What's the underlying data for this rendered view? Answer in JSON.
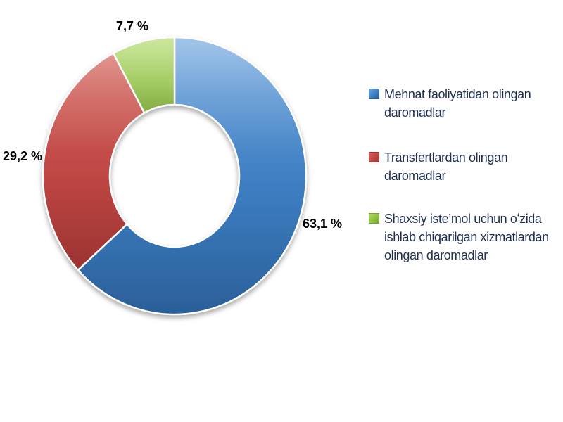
{
  "chart_data": {
    "type": "pie",
    "subtype": "doughnut",
    "title": "",
    "unit": "%",
    "decimal_separator": ",",
    "direction": "clockwise",
    "start_angle_deg": 0,
    "hole_ratio": 0.5,
    "legend_position": "right",
    "background_color": "#FFFFFF",
    "label_text_color": "#000000",
    "legend_text_color": "#1F3050",
    "slice_border_color": "#FFFFFF",
    "slices": [
      {
        "id": "mehnat-faoliyatidan",
        "name": "Mehnat faoliyatidan olingan daromadlar",
        "value": 63.1,
        "label": "63,1 %",
        "color": "#3C7DC1",
        "color_light": "#6AA2DC",
        "color_dark": "#2B5F98",
        "legend_lines": [
          "Mehnat faoliyatidan olingan",
          "daromadlar"
        ]
      },
      {
        "id": "transfertlardan",
        "name": "Transfertlardan olingan daromadlar",
        "value": 29.2,
        "label": "29,2 %",
        "color": "#C04744",
        "color_light": "#D4655D",
        "color_dark": "#9A3331",
        "legend_lines": [
          "Transfertlardan olingan",
          "daromadlar"
        ]
      },
      {
        "id": "shaxsiy-istemol",
        "name": "Shaxsiy iste’mol uchun oʻzida ishlab chiqarilgan xizmatlardan olingan daromadlar",
        "value": 7.7,
        "label": "7,7 %",
        "color": "#8FC140",
        "color_light": "#AFD863",
        "color_dark": "#74A42E",
        "legend_lines": [
          "Shaxsiy iste’mol uchun oʻzida",
          "ishlab chiqarilgan xizmatlardan",
          "olingan daromadlar"
        ]
      }
    ]
  }
}
